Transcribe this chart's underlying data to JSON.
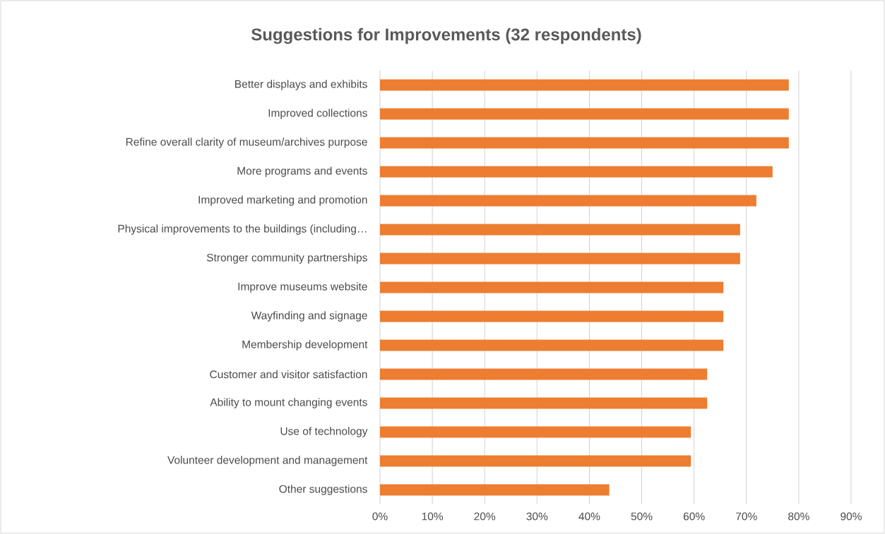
{
  "chart_data": {
    "type": "bar",
    "orientation": "horizontal",
    "title": "Suggestions for Improvements (32 respondents)",
    "categories": [
      "Better displays and exhibits",
      "Improved collections",
      "Refine overall clarity of museum/archives purpose",
      "More programs and events",
      "Improved marketing and promotion",
      "Physical improvements to the buildings (including…",
      "Stronger community partnerships",
      "Improve museums website",
      "Wayfinding and signage",
      "Membership development",
      "Customer and visitor satisfaction",
      "Ability to mount changing events",
      "Use of technology",
      "Volunteer development and management",
      "Other suggestions"
    ],
    "values": [
      78.1,
      78.1,
      78.1,
      75.0,
      71.9,
      68.8,
      68.8,
      65.6,
      65.6,
      65.6,
      62.5,
      62.5,
      59.4,
      59.4,
      43.8
    ],
    "color": "#ed7d31",
    "xlim": [
      0,
      90
    ],
    "xticks": [
      {
        "value": 0,
        "label": "0%"
      },
      {
        "value": 10,
        "label": "10%"
      },
      {
        "value": 20,
        "label": "20%"
      },
      {
        "value": 30,
        "label": "30%"
      },
      {
        "value": 40,
        "label": "40%"
      },
      {
        "value": 50,
        "label": "50%"
      },
      {
        "value": 60,
        "label": "60%"
      },
      {
        "value": 70,
        "label": "70%"
      },
      {
        "value": 80,
        "label": "80%"
      },
      {
        "value": 90,
        "label": "90%"
      }
    ],
    "grid": "x"
  }
}
